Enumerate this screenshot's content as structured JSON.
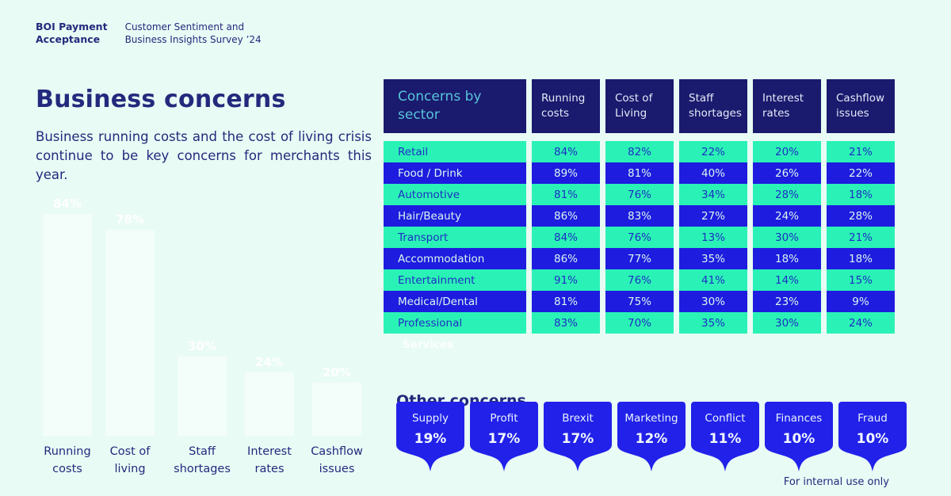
{
  "brand": {
    "logo_line1": "BOI Payment",
    "logo_line2": "Acceptance",
    "tagline_line1": "Customer Sentiment and",
    "tagline_line2": "Business Insights Survey ’24"
  },
  "intro": {
    "title": "Business concerns",
    "body": "Business running costs and the cost of living crisis continue to be key concerns for merchants this year."
  },
  "colors": {
    "background": "#E9FBF5",
    "navy": "#1A1A6E",
    "ink": "#232A7D",
    "blue": "#1E1CDF",
    "shield": "#2121EA",
    "mint": "#2AF2B6",
    "teal": "#57C4DB",
    "on_blue": "#D8F8EE",
    "on_green": "#1E2EC5",
    "header_text": "#E4E9F7"
  },
  "chart_data": [
    {
      "type": "bar",
      "title": "Business concerns — overall (ghost chart, white bars on pale background)",
      "categories": [
        "Running costs",
        "Cost of living",
        "Staff shortages",
        "Interest rates",
        "Cashflow issues"
      ],
      "values": [
        84,
        78,
        30,
        24,
        20
      ],
      "value_labels": [
        "84%",
        "78%",
        "30%",
        "24%",
        "20%"
      ],
      "ylim": [
        0,
        100
      ],
      "grid": false,
      "legend": "none"
    },
    {
      "type": "table",
      "title": "Concerns by sector",
      "columns": [
        "Running costs",
        "Cost of Living",
        "Staff shortages",
        "Interest rates",
        "Cashflow issues"
      ],
      "rows": [
        {
          "sector": "Retail",
          "values": [
            "84%",
            "82%",
            "22%",
            "20%",
            "21%"
          ]
        },
        {
          "sector": "Food / Drink",
          "values": [
            "89%",
            "81%",
            "40%",
            "26%",
            "22%"
          ]
        },
        {
          "sector": "Automotive",
          "values": [
            "81%",
            "76%",
            "34%",
            "28%",
            "18%"
          ]
        },
        {
          "sector": "Hair/Beauty",
          "values": [
            "86%",
            "83%",
            "27%",
            "24%",
            "28%"
          ]
        },
        {
          "sector": "Transport",
          "values": [
            "84%",
            "76%",
            "13%",
            "30%",
            "21%"
          ]
        },
        {
          "sector": "Accommodation",
          "values": [
            "86%",
            "77%",
            "35%",
            "18%",
            "18%"
          ]
        },
        {
          "sector": "Entertainment",
          "values": [
            "91%",
            "76%",
            "41%",
            "14%",
            "15%"
          ]
        },
        {
          "sector": "Medical/Dental",
          "values": [
            "81%",
            "75%",
            "30%",
            "23%",
            "9%"
          ]
        },
        {
          "sector": "Professional",
          "values": [
            "83%",
            "70%",
            "35%",
            "30%",
            "24%"
          ]
        }
      ],
      "ghost_overflow_label": "Services"
    },
    {
      "type": "bar",
      "title": "Other concerns",
      "categories": [
        "Supply",
        "Profit",
        "Brexit",
        "Marketing",
        "Conflict",
        "Finances",
        "Fraud"
      ],
      "values": [
        19,
        17,
        17,
        12,
        11,
        10,
        10
      ],
      "value_labels": [
        "19%",
        "17%",
        "17%",
        "12%",
        "11%",
        "10%",
        "10%"
      ]
    }
  ],
  "other_concerns_heading": "Other concerns",
  "footer": {
    "note": "For internal use only"
  }
}
